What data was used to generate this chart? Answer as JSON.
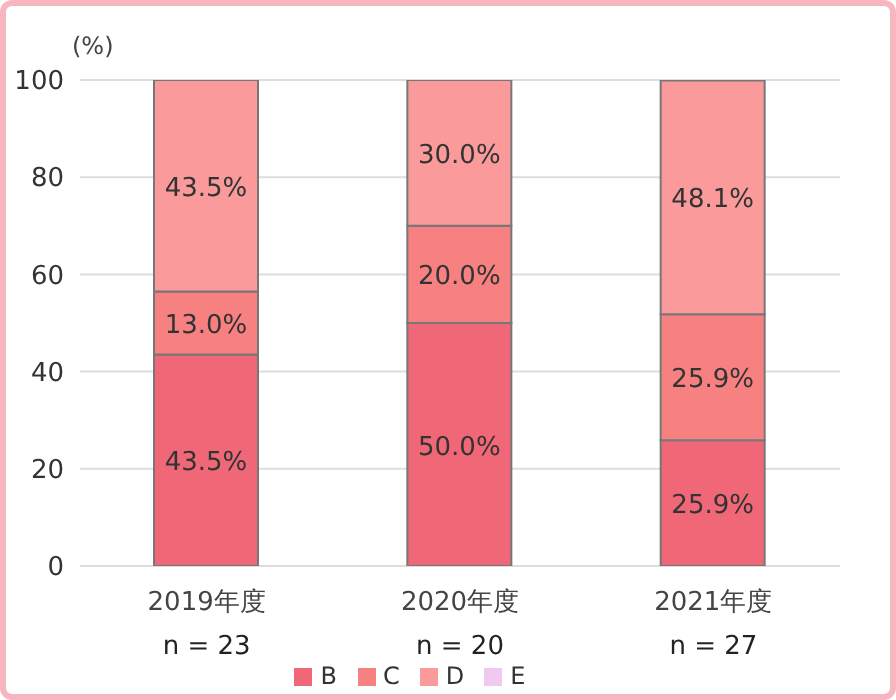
{
  "chart_data": {
    "type": "bar",
    "ylabel": "(%)",
    "categories": [
      "2019年度",
      "2020年度",
      "2021年度"
    ],
    "series": [
      {
        "name": "B",
        "color": "#f06878",
        "values": [
          43.5,
          50.0,
          25.9
        ],
        "value_labels": [
          "43.5%",
          "50.0%",
          "25.9%"
        ]
      },
      {
        "name": "C",
        "color": "#f78080",
        "values": [
          13.0,
          20.0,
          25.9
        ],
        "value_labels": [
          "13.0%",
          "20.0%",
          "25.9%"
        ]
      },
      {
        "name": "D",
        "color": "#fa9a9a",
        "values": [
          43.5,
          30.0,
          48.1
        ],
        "value_labels": [
          "43.5%",
          "30.0%",
          "48.1%"
        ]
      },
      {
        "name": "E",
        "color": "#f0c8f0",
        "values": [
          null,
          null,
          null
        ]
      }
    ],
    "stacked": true,
    "ylim": [
      0,
      100
    ],
    "yticks": [
      0,
      20,
      40,
      60,
      80,
      100
    ],
    "grid": "y",
    "legend": "bottom",
    "annotations": [
      "n = 23",
      "n = 20",
      "n = 27"
    ]
  }
}
